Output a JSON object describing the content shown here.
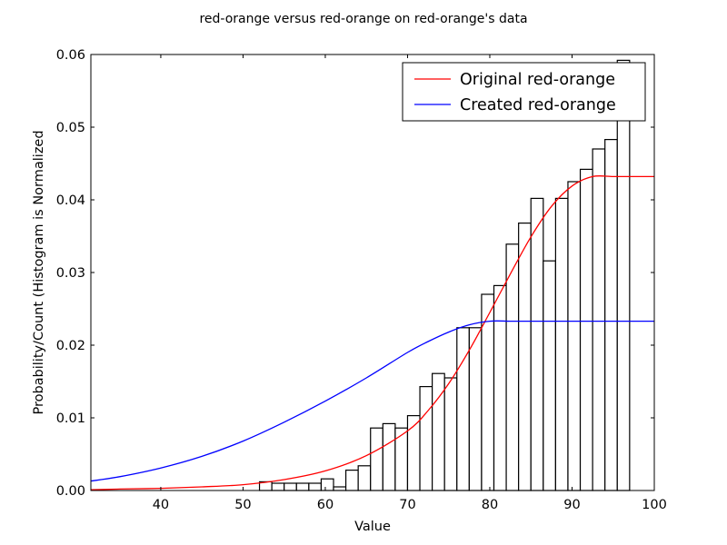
{
  "chart_data": {
    "type": "bar",
    "title": "red-orange versus red-orange on red-orange's data",
    "xlabel": "Value",
    "ylabel": "Probability/Count (Histogram is Normalized",
    "xlim": [
      31.5,
      100
    ],
    "ylim": [
      0,
      0.06
    ],
    "xticks": [
      40,
      50,
      60,
      70,
      80,
      90,
      100
    ],
    "xtick_labels": [
      "40",
      "50",
      "60",
      "70",
      "80",
      "90",
      "100"
    ],
    "yticks": [
      0,
      0.01,
      0.02,
      0.03,
      0.04,
      0.05,
      0.06
    ],
    "ytick_labels": [
      "0.00",
      "0.01",
      "0.02",
      "0.03",
      "0.04",
      "0.05",
      "0.06"
    ],
    "grid": false,
    "legend_position": "top-right",
    "histogram": {
      "bin_edges": [
        52,
        53.5,
        55,
        56.5,
        58,
        59.5,
        61,
        62.5,
        64,
        65.5,
        67,
        68.5,
        70,
        71.5,
        73,
        74.5,
        76,
        77.5,
        79,
        80.5,
        82,
        83.5,
        85,
        86.5,
        88,
        89.5,
        91,
        92.5,
        94,
        95.5,
        97,
        98.5,
        100
      ],
      "values": [
        0.0012,
        0.001,
        0.001,
        0.001,
        0.001,
        0.0016,
        0.0005,
        0.0028,
        0.0034,
        0.0086,
        0.0092,
        0.0086,
        0.0103,
        0.0143,
        0.0161,
        0.0155,
        0.0224,
        0.0224,
        0.027,
        0.0282,
        0.0339,
        0.0368,
        0.0402,
        0.0316,
        0.0402,
        0.0425,
        0.0442,
        0.047,
        0.0483,
        0.0592,
        0.0,
        0.0
      ]
    },
    "series": [
      {
        "name": "Original red-orange",
        "color": "#ff0000",
        "x": [
          31.5,
          35,
          40,
          45,
          50,
          55,
          60,
          65,
          70,
          72.5,
          75,
          77.5,
          80,
          82.5,
          85,
          87.5,
          90,
          92.5,
          95,
          97.5,
          100
        ],
        "y": [
          0.0001,
          0.0002,
          0.0003,
          0.0005,
          0.0008,
          0.0015,
          0.0027,
          0.0048,
          0.0082,
          0.011,
          0.0147,
          0.0193,
          0.0245,
          0.0298,
          0.0349,
          0.0391,
          0.0419,
          0.0432,
          0.0432,
          0.0432,
          0.0432
        ]
      },
      {
        "name": "Created red-orange",
        "color": "#0000ff",
        "x": [
          31.5,
          35,
          40,
          45,
          50,
          55,
          60,
          65,
          70,
          72.5,
          75,
          77.5,
          80,
          82.5,
          85,
          90,
          95,
          100
        ],
        "y": [
          0.0013,
          0.0019,
          0.0031,
          0.0047,
          0.0068,
          0.0094,
          0.0123,
          0.0155,
          0.019,
          0.0205,
          0.0218,
          0.0228,
          0.0233,
          0.0233,
          0.0233,
          0.0233,
          0.0233,
          0.0233
        ]
      }
    ]
  }
}
